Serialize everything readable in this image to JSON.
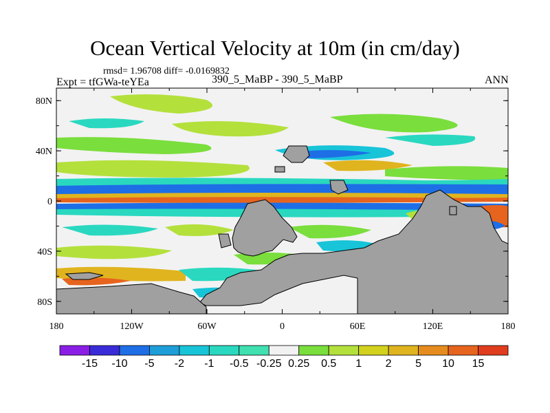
{
  "title": "Ocean Vertical Velocity at 10m (in cm/day)",
  "stats": "rmsd= 1.96708 diff= -0.0169832",
  "experiment": "Expt = tfGWa-teYEa",
  "center_label": "390_5_MaBP - 390_5_MaBP",
  "season": "ANN",
  "map": {
    "lon_range": [
      -180,
      180
    ],
    "lat_range": [
      -90,
      90
    ],
    "land_color": "#a0a0a0"
  },
  "axes": {
    "y_ticks": [
      {
        "value": 80,
        "label": "80N"
      },
      {
        "value": 40,
        "label": "40N"
      },
      {
        "value": 0,
        "label": "0"
      },
      {
        "value": -40,
        "label": "40S"
      },
      {
        "value": -80,
        "label": "80S"
      }
    ],
    "x_ticks": [
      {
        "value": -180,
        "label": "180"
      },
      {
        "value": -120,
        "label": "120W"
      },
      {
        "value": -60,
        "label": "60W"
      },
      {
        "value": 0,
        "label": "0"
      },
      {
        "value": 60,
        "label": "60E"
      },
      {
        "value": 120,
        "label": "120E"
      },
      {
        "value": 180,
        "label": "180"
      }
    ]
  },
  "colorbar": {
    "colors": [
      "#8a1ee6",
      "#3a2bd8",
      "#1e6ee6",
      "#1e9ed8",
      "#18c4d8",
      "#2ad8c0",
      "#40e0b0",
      "#f2f2f2",
      "#7ade3c",
      "#b4e03c",
      "#d2d21e",
      "#e0b41e",
      "#e68c1e",
      "#e6641e",
      "#e03c1e"
    ],
    "labels": [
      "-15",
      "-10",
      "-5",
      "-2",
      "-1",
      "-0.5",
      "-0.25",
      "0.25",
      "0.5",
      "1",
      "2",
      "5",
      "10",
      "15"
    ]
  }
}
